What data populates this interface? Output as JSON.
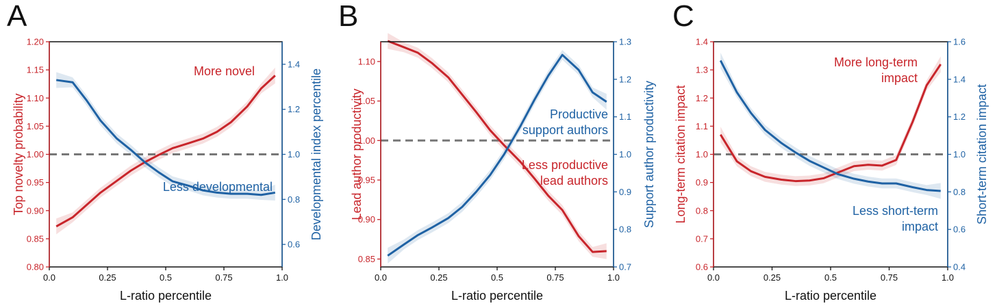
{
  "colors": {
    "left": "#c8252b",
    "right": "#1f62a4",
    "dashed": "#777777",
    "axis": "#111111"
  },
  "chart_data": [
    {
      "type": "line",
      "panel_label": "A",
      "xlabel": "L-ratio percentile",
      "xlim": [
        0,
        1
      ],
      "xticks": [
        "0.0",
        "0.25",
        "0.5",
        "0.75",
        "1.0"
      ],
      "xtick_values": [
        0,
        0.25,
        0.5,
        0.75,
        1.0
      ],
      "left_axis": {
        "label": "Top novelty probability",
        "lim": [
          0.8,
          1.2
        ],
        "ticks": [
          "0.80",
          "0.85",
          "0.90",
          "0.95",
          "1.00",
          "1.05",
          "1.10",
          "1.15",
          "1.20"
        ],
        "tick_values": [
          0.8,
          0.85,
          0.9,
          0.95,
          1.0,
          1.05,
          1.1,
          1.15,
          1.2
        ]
      },
      "right_axis": {
        "label": "Developmental index percentile",
        "lim": [
          0.5,
          1.5
        ],
        "ticks": [
          "0.6",
          "0.8",
          "1.0",
          "1.2",
          "1.4"
        ],
        "tick_values": [
          0.6,
          0.8,
          1.0,
          1.2,
          1.4
        ]
      },
      "reference_line": 1.0,
      "series": [
        {
          "axis": "left",
          "color": "red",
          "x": [
            0.03,
            0.1,
            0.16,
            0.22,
            0.29,
            0.35,
            0.41,
            0.47,
            0.53,
            0.6,
            0.66,
            0.72,
            0.78,
            0.85,
            0.91,
            0.97
          ],
          "y": [
            0.872,
            0.888,
            0.91,
            0.932,
            0.953,
            0.971,
            0.986,
            0.999,
            1.011,
            1.02,
            1.028,
            1.04,
            1.057,
            1.085,
            1.117,
            1.14
          ]
        },
        {
          "axis": "right",
          "color": "blue",
          "x": [
            0.03,
            0.1,
            0.16,
            0.22,
            0.29,
            0.35,
            0.41,
            0.47,
            0.53,
            0.6,
            0.66,
            0.72,
            0.78,
            0.85,
            0.91,
            0.97
          ],
          "y": [
            1.33,
            1.32,
            1.24,
            1.15,
            1.07,
            1.02,
            0.965,
            0.92,
            0.88,
            0.86,
            0.84,
            0.83,
            0.825,
            0.825,
            0.82,
            0.83
          ]
        }
      ],
      "annotations": [
        {
          "lines": [
            "More novel"
          ],
          "color": "red"
        },
        {
          "lines": [
            "Less developmental"
          ],
          "color": "blue"
        }
      ]
    },
    {
      "type": "line",
      "panel_label": "B",
      "xlabel": "L-ratio percentile",
      "xlim": [
        0,
        1
      ],
      "xticks": [
        "0.0",
        "0.25",
        "0.5",
        "0.75",
        "1.0"
      ],
      "xtick_values": [
        0,
        0.25,
        0.5,
        0.75,
        1.0
      ],
      "left_axis": {
        "label": "Lead author productivity",
        "lim": [
          0.84,
          1.125
        ],
        "ticks": [
          "0.85",
          "0.90",
          "0.95",
          "1.00",
          "1.05",
          "1.10"
        ],
        "tick_values": [
          0.85,
          0.9,
          0.95,
          1.0,
          1.05,
          1.1
        ]
      },
      "right_axis": {
        "label": "Support author productivity",
        "lim": [
          0.7,
          1.3
        ],
        "ticks": [
          "0.7",
          "0.8",
          "0.9",
          "1.0",
          "1.1",
          "1.2",
          "1.3"
        ],
        "tick_values": [
          0.7,
          0.8,
          0.9,
          1.0,
          1.1,
          1.2,
          1.3
        ]
      },
      "reference_line": 1.0,
      "series": [
        {
          "axis": "left",
          "color": "red",
          "x": [
            0.03,
            0.1,
            0.16,
            0.22,
            0.29,
            0.35,
            0.41,
            0.47,
            0.53,
            0.6,
            0.66,
            0.72,
            0.78,
            0.85,
            0.91,
            0.97
          ],
          "y": [
            1.126,
            1.118,
            1.111,
            1.098,
            1.08,
            1.058,
            1.036,
            1.013,
            0.994,
            0.973,
            0.952,
            0.93,
            0.912,
            0.879,
            0.859,
            0.86
          ]
        },
        {
          "axis": "right",
          "color": "blue",
          "x": [
            0.03,
            0.1,
            0.16,
            0.22,
            0.29,
            0.35,
            0.41,
            0.47,
            0.53,
            0.6,
            0.66,
            0.72,
            0.78,
            0.85,
            0.91,
            0.97
          ],
          "y": [
            0.73,
            0.76,
            0.785,
            0.805,
            0.83,
            0.86,
            0.9,
            0.945,
            1.0,
            1.075,
            1.145,
            1.21,
            1.265,
            1.225,
            1.165,
            1.14
          ]
        }
      ],
      "annotations": [
        {
          "lines": [
            "Productive",
            "support authors"
          ],
          "color": "blue"
        },
        {
          "lines": [
            "Less productive",
            "lead authors"
          ],
          "color": "red"
        }
      ]
    },
    {
      "type": "line",
      "panel_label": "C",
      "xlabel": "L-ratio percentile",
      "xlim": [
        0,
        1
      ],
      "xticks": [
        "0.0",
        "0.25",
        "0.5",
        "0.75",
        "1.0"
      ],
      "xtick_values": [
        0,
        0.25,
        0.5,
        0.75,
        1.0
      ],
      "left_axis": {
        "label": "Long-term citation impact",
        "lim": [
          0.6,
          1.4
        ],
        "ticks": [
          "0.6",
          "0.7",
          "0.8",
          "0.9",
          "1.0",
          "1.1",
          "1.2",
          "1.3",
          "1.4"
        ],
        "tick_values": [
          0.6,
          0.7,
          0.8,
          0.9,
          1.0,
          1.1,
          1.2,
          1.3,
          1.4
        ]
      },
      "right_axis": {
        "label": "Short-term citation impact",
        "lim": [
          0.4,
          1.6
        ],
        "ticks": [
          "0.4",
          "0.6",
          "0.8",
          "1.0",
          "1.2",
          "1.4",
          "1.6"
        ],
        "tick_values": [
          0.4,
          0.6,
          0.8,
          1.0,
          1.2,
          1.4,
          1.6
        ]
      },
      "reference_line": 1.0,
      "series": [
        {
          "axis": "left",
          "color": "red",
          "x": [
            0.03,
            0.1,
            0.16,
            0.22,
            0.29,
            0.35,
            0.41,
            0.47,
            0.53,
            0.6,
            0.66,
            0.72,
            0.78,
            0.85,
            0.91,
            0.97
          ],
          "y": [
            1.07,
            0.975,
            0.94,
            0.92,
            0.91,
            0.905,
            0.907,
            0.915,
            0.935,
            0.958,
            0.963,
            0.96,
            0.98,
            1.115,
            1.245,
            1.32
          ]
        },
        {
          "axis": "right",
          "color": "blue",
          "x": [
            0.03,
            0.1,
            0.16,
            0.22,
            0.29,
            0.35,
            0.41,
            0.47,
            0.53,
            0.6,
            0.66,
            0.72,
            0.78,
            0.85,
            0.91,
            0.97
          ],
          "y": [
            1.5,
            1.33,
            1.22,
            1.13,
            1.06,
            1.01,
            0.965,
            0.93,
            0.895,
            0.87,
            0.855,
            0.845,
            0.845,
            0.825,
            0.81,
            0.805
          ]
        }
      ],
      "annotations": [
        {
          "lines": [
            "More long-term",
            "impact"
          ],
          "color": "red"
        },
        {
          "lines": [
            "Less short-term",
            "impact"
          ],
          "color": "blue"
        }
      ]
    }
  ]
}
